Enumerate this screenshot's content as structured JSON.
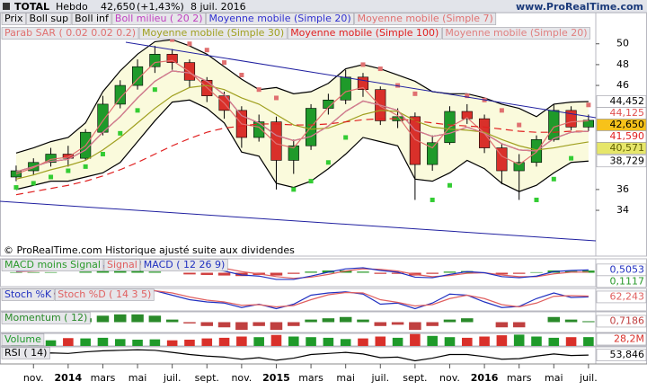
{
  "header": {
    "symbol": "TOTAL",
    "period": "Hebdo",
    "price": "42,650",
    "change": "(+1,43%)",
    "date": "8 juil. 2016",
    "site": "www.ProRealTime.com",
    "note": "© ProRealTime.com Historique ajusté suite aux dividendes"
  },
  "chart_data": [
    {
      "type": "candlestick",
      "xlim": [
        -0.93,
        33.42
      ],
      "ylim": [
        29.6,
        53
      ],
      "yticks": [
        34,
        36,
        46,
        48,
        50
      ],
      "xticks": [
        {
          "value": 1,
          "label": "nov."
        },
        {
          "value": 3,
          "label": "2014"
        },
        {
          "value": 5,
          "label": "mars"
        },
        {
          "value": 7,
          "label": "mai"
        },
        {
          "value": 9,
          "label": "juil."
        },
        {
          "value": 11,
          "label": "sept."
        },
        {
          "value": 13,
          "label": "nov."
        },
        {
          "value": 15,
          "label": "2015"
        },
        {
          "value": 17,
          "label": "mars"
        },
        {
          "value": 19,
          "label": "mai"
        },
        {
          "value": 21,
          "label": "juil."
        },
        {
          "value": 23,
          "label": "sept."
        },
        {
          "value": 25,
          "label": "nov."
        },
        {
          "value": 27,
          "label": "2016"
        },
        {
          "value": 29,
          "label": "mars"
        },
        {
          "value": 31,
          "label": "mai"
        },
        {
          "value": 33,
          "label": "juil."
        }
      ],
      "up_color": "#1f9a2a",
      "down_color": "#d9302a",
      "band_fill": "#fafadc",
      "series": [
        {
          "name": "Prix",
          "color": "#000000",
          "open": [
            37.2,
            37.8,
            38.6,
            39.4,
            39.0,
            41.5,
            44.2,
            46.0,
            47.8,
            49.0,
            48.2,
            46.5,
            45.0,
            43.6,
            41.0,
            42.5,
            38.8,
            40.2,
            43.8,
            44.6,
            46.8,
            45.6,
            42.6,
            43.0,
            38.4,
            40.5,
            43.5,
            42.8,
            40.0,
            37.8,
            38.6,
            40.8,
            43.6,
            42.0
          ],
          "high": [
            38.3,
            39.0,
            40.0,
            40.2,
            41.8,
            45.0,
            46.5,
            48.5,
            49.8,
            49.5,
            48.5,
            46.8,
            45.4,
            44.0,
            43.2,
            43.0,
            40.8,
            44.2,
            45.2,
            47.5,
            47.2,
            45.9,
            43.8,
            43.4,
            41.2,
            44.0,
            44.2,
            43.2,
            40.4,
            39.4,
            41.2,
            44.2,
            44.0,
            43.2
          ],
          "low": [
            36.8,
            37.4,
            38.2,
            38.2,
            38.8,
            41.2,
            43.8,
            45.6,
            47.2,
            47.5,
            45.8,
            44.4,
            42.8,
            40.0,
            40.6,
            36.0,
            37.5,
            39.8,
            43.2,
            44.2,
            44.9,
            42.2,
            41.9,
            35.0,
            37.8,
            40.3,
            42.3,
            39.5,
            36.5,
            35.0,
            38.2,
            40.6,
            41.7,
            41.6
          ],
          "close": [
            37.8,
            38.6,
            39.4,
            39.0,
            41.5,
            44.2,
            46.0,
            47.8,
            49.0,
            48.2,
            46.5,
            45.0,
            43.6,
            41.0,
            42.5,
            38.8,
            40.2,
            43.8,
            44.6,
            46.8,
            45.6,
            42.6,
            43.0,
            38.4,
            40.5,
            43.5,
            42.8,
            40.0,
            37.8,
            38.6,
            40.8,
            43.6,
            42.0,
            42.65
          ]
        },
        {
          "name": "Boll sup",
          "color": "#000000",
          "values": [
            39.5,
            40.0,
            40.6,
            41.0,
            42.4,
            45.4,
            47.4,
            49.0,
            50.2,
            50.4,
            49.8,
            49.0,
            47.8,
            46.6,
            45.6,
            45.8,
            45.2,
            45.4,
            46.2,
            47.6,
            48.0,
            47.6,
            47.0,
            46.4,
            45.4,
            45.2,
            45.2,
            44.8,
            44.2,
            43.8,
            43.0,
            44.2,
            44.4,
            44.452
          ]
        },
        {
          "name": "Boll inf",
          "color": "#000000",
          "values": [
            36.0,
            36.4,
            36.8,
            36.8,
            37.2,
            37.6,
            38.6,
            40.6,
            42.6,
            44.4,
            44.6,
            43.8,
            42.4,
            39.6,
            39.2,
            36.6,
            36.2,
            36.8,
            38.0,
            39.4,
            41.0,
            40.6,
            40.2,
            37.0,
            36.8,
            37.6,
            38.8,
            38.0,
            36.6,
            35.8,
            36.4,
            37.6,
            38.6,
            38.729
          ]
        },
        {
          "name": "Boll milieu ( 20 2)",
          "color": "#c040c0",
          "dash": "4 3",
          "values": [
            37.7,
            38.2,
            38.7,
            38.9,
            39.8,
            41.5,
            43.0,
            44.8,
            46.4,
            47.4,
            47.2,
            46.4,
            45.1,
            43.1,
            42.4,
            41.2,
            40.7,
            41.1,
            42.1,
            43.5,
            44.5,
            44.1,
            43.6,
            41.7,
            41.1,
            41.4,
            42.0,
            41.4,
            40.4,
            39.8,
            39.7,
            40.9,
            41.5,
            41.6
          ]
        },
        {
          "name": "Moyenne mobile (Simple 20)",
          "color": "#3030d0",
          "values": [
            37.7,
            38.2,
            38.7,
            38.9,
            39.8,
            41.5,
            43.0,
            44.8,
            46.4,
            47.4,
            47.2,
            46.4,
            45.1,
            43.1,
            42.4,
            41.2,
            40.7,
            41.1,
            42.1,
            43.5,
            44.5,
            44.1,
            43.6,
            41.7,
            41.1,
            41.4,
            42.0,
            41.4,
            40.4,
            39.8,
            39.7,
            40.9,
            41.5,
            41.6
          ]
        },
        {
          "name": "Moyenne mobile (Simple 7)",
          "color": "#e07070",
          "values": [
            37.5,
            38.1,
            38.9,
            39.1,
            40.2,
            42.6,
            44.8,
            46.6,
            48.2,
            48.4,
            47.3,
            45.8,
            44.3,
            42.3,
            42.0,
            40.4,
            40.0,
            42.0,
            43.9,
            45.4,
            45.8,
            44.0,
            43.1,
            40.8,
            40.0,
            42.0,
            42.9,
            41.4,
            39.2,
            38.4,
            39.6,
            42.0,
            42.5,
            42.6
          ]
        },
        {
          "name": "Parab SAR ( 0.02 0.02 0.2)",
          "color": "#e07070",
          "alt_color": "#33cc33",
          "style": "dots",
          "values": [
            36.2,
            36.6,
            37.2,
            37.8,
            38.2,
            39.4,
            41.4,
            43.6,
            45.6,
            50.4,
            50.0,
            49.4,
            48.2,
            47.0,
            45.6,
            44.8,
            36.0,
            36.8,
            38.6,
            41.0,
            48.0,
            47.6,
            46.0,
            45.2,
            35.0,
            36.4,
            45.0,
            44.6,
            43.6,
            42.2,
            35.0,
            37.0,
            39.0,
            44.125
          ]
        },
        {
          "name": "Moyenne mobile (Simple 30)",
          "color": "#a0a020",
          "values": [
            37.0,
            37.4,
            37.9,
            38.3,
            38.8,
            39.8,
            41.0,
            42.4,
            43.8,
            45.0,
            45.8,
            46.0,
            45.6,
            44.8,
            44.2,
            43.2,
            42.2,
            41.8,
            41.9,
            42.5,
            43.2,
            43.6,
            43.5,
            42.6,
            42.0,
            41.8,
            41.7,
            41.5,
            40.8,
            40.2,
            39.8,
            40.0,
            40.3,
            40.571
          ]
        },
        {
          "name": "Moyenne mobile (Simple 100)",
          "color": "#e02020",
          "dash": "8 5",
          "values": [
            35.5,
            35.8,
            36.1,
            36.4,
            36.8,
            37.3,
            37.9,
            38.6,
            39.4,
            40.2,
            40.9,
            41.5,
            41.9,
            42.1,
            42.3,
            42.3,
            42.2,
            42.2,
            42.3,
            42.5,
            42.7,
            42.8,
            42.8,
            42.6,
            42.4,
            42.2,
            42.1,
            42.0,
            41.8,
            41.6,
            41.5,
            41.5,
            41.6,
            41.59
          ]
        },
        {
          "name": "Moyenne mobile (Simple 20)",
          "color": "#e08080",
          "values": [
            37.7,
            38.2,
            38.7,
            38.9,
            39.8,
            41.5,
            43.0,
            44.8,
            46.4,
            47.4,
            47.2,
            46.4,
            45.1,
            43.1,
            42.4,
            41.2,
            40.7,
            41.1,
            42.1,
            43.5,
            44.5,
            44.1,
            43.6,
            41.7,
            41.1,
            41.4,
            42.0,
            41.4,
            40.4,
            39.8,
            39.7,
            40.9,
            41.5,
            41.6
          ]
        }
      ],
      "flags": [
        {
          "value": 44.452,
          "label": "44,452",
          "color": "#000000",
          "fill": "#ffffff"
        },
        {
          "value": 44.125,
          "label": "44,125",
          "color": "#e05050",
          "fill": "#ffffff"
        },
        {
          "value": 42.65,
          "label": "42,650",
          "color": "#000000",
          "fill": "#f7c21a"
        },
        {
          "value": 41.59,
          "label": "41,590",
          "color": "#e02020",
          "fill": "#ffffff"
        },
        {
          "value": 40.571,
          "label": "40,571",
          "color": "#606000",
          "fill": "#e6e66a"
        },
        {
          "value": 38.729,
          "label": "38,729",
          "color": "#000000",
          "fill": "#ffffff"
        }
      ]
    },
    {
      "type": "indicator",
      "ylim": [
        -2.5,
        2.5
      ],
      "series": [
        {
          "name": "MACD moins Signal",
          "color": "#2a9a2a",
          "alt_color": "#d04040",
          "style": "histogram",
          "values": [
            0.1,
            0.1,
            0.1,
            0,
            0.2,
            0.3,
            0.4,
            0.4,
            0.2,
            0,
            -0.3,
            -0.4,
            -0.5,
            -0.6,
            -0.4,
            -0.5,
            -0.2,
            0.2,
            0.4,
            0.4,
            0.2,
            -0.2,
            -0.2,
            -0.5,
            -0.2,
            0.2,
            0.3,
            0,
            -0.3,
            -0.2,
            0.1,
            0.4,
            0.3,
            0.39
          ]
        },
        {
          "name": "Signal",
          "color": "#e06060",
          "values": [
            0.2,
            0.3,
            0.4,
            0.5,
            0.6,
            0.9,
            1.2,
            1.5,
            1.8,
            1.8,
            1.6,
            1.2,
            0.8,
            0.2,
            -0.2,
            -0.7,
            -1.0,
            -0.8,
            -0.3,
            0.3,
            0.7,
            0.6,
            0.3,
            -0.3,
            -0.7,
            -0.5,
            -0.1,
            0.0,
            -0.4,
            -0.7,
            -0.7,
            -0.2,
            0.1,
            0.1117
          ]
        },
        {
          "name": "MACD ( 12 26 9)",
          "color": "#2030c0",
          "values": [
            0.3,
            0.4,
            0.5,
            0.5,
            0.8,
            1.2,
            1.6,
            1.9,
            2.0,
            1.8,
            1.3,
            0.8,
            0.3,
            -0.4,
            -0.6,
            -1.2,
            -1.2,
            -0.6,
            0.1,
            0.7,
            0.9,
            0.4,
            0.1,
            -0.8,
            -0.9,
            -0.3,
            0.2,
            0.0,
            -0.7,
            -0.9,
            -0.6,
            0.2,
            0.4,
            0.5053
          ]
        }
      ],
      "flags": [
        {
          "value": 0.5053,
          "label": "0,5053",
          "color": "#2030c0",
          "fill": "#ffffff"
        },
        {
          "value": 0.1117,
          "label": "0,1117",
          "color": "#2a9a2a",
          "fill": "#ffffff"
        }
      ]
    },
    {
      "type": "indicator",
      "ylim": [
        0,
        100
      ],
      "series": [
        {
          "name": "Stoch %K",
          "color": "#2030c0",
          "values": [
            70,
            75,
            80,
            72,
            85,
            90,
            88,
            92,
            90,
            70,
            50,
            40,
            35,
            15,
            30,
            10,
            30,
            70,
            80,
            85,
            75,
            30,
            35,
            10,
            35,
            75,
            70,
            40,
            15,
            20,
            55,
            80,
            60,
            62.243
          ]
        },
        {
          "name": "Stoch %D ( 14 3 5)",
          "color": "#e06060",
          "values": [
            65,
            70,
            76,
            75,
            79,
            86,
            88,
            90,
            90,
            80,
            62,
            48,
            40,
            25,
            28,
            18,
            24,
            50,
            72,
            82,
            80,
            50,
            38,
            22,
            28,
            55,
            70,
            55,
            28,
            18,
            35,
            65,
            68,
            66
          ]
        }
      ],
      "flags": [
        {
          "value": 62.243,
          "label": "62,243",
          "color": "#e06060",
          "fill": "#ffffff"
        }
      ]
    },
    {
      "type": "indicator",
      "ylim": [
        -8,
        8
      ],
      "series": [
        {
          "name": "Momentum ( 12)",
          "color": "#2a8a2a",
          "alt_color": "#c04040",
          "style": "histogram",
          "values": [
            1,
            1.5,
            2,
            1,
            3,
            5,
            6,
            6,
            5,
            2,
            -1,
            -3,
            -4,
            -6,
            -3,
            -6,
            -3,
            2,
            3,
            4,
            2,
            -3,
            -2,
            -6,
            -3,
            2,
            3,
            0,
            -4,
            -4,
            0,
            4,
            2,
            0.7186
          ]
        }
      ],
      "flags": [
        {
          "value": 0.7186,
          "label": "0,7186",
          "color": "#c04040",
          "fill": "#ffffff"
        }
      ]
    },
    {
      "type": "indicator",
      "ylim": [
        0,
        40
      ],
      "series": [
        {
          "name": "Volume",
          "color": "#1f9a2a",
          "alt_color": "#d9302a",
          "style": "bars",
          "values": [
            20,
            22,
            18,
            25,
            24,
            26,
            22,
            20,
            21,
            18,
            20,
            24,
            26,
            30,
            28,
            35,
            30,
            28,
            26,
            22,
            24,
            30,
            26,
            38,
            32,
            28,
            26,
            30,
            34,
            36,
            30,
            26,
            28,
            28.2
          ]
        }
      ],
      "flags": [
        {
          "value": 28.2,
          "label": "28,2M",
          "color": "#d9302a",
          "fill": "#ffffff"
        }
      ]
    },
    {
      "type": "indicator",
      "ylim": [
        20,
        85
      ],
      "series": [
        {
          "name": "RSI ( 14)",
          "color": "#000000",
          "values": [
            58,
            60,
            62,
            60,
            66,
            70,
            72,
            74,
            72,
            64,
            56,
            50,
            46,
            38,
            44,
            34,
            42,
            56,
            60,
            64,
            58,
            44,
            46,
            32,
            42,
            56,
            56,
            48,
            38,
            40,
            50,
            58,
            52,
            53.846
          ]
        }
      ],
      "flags": [
        {
          "value": 53.846,
          "label": "53,846",
          "color": "#000000",
          "fill": "#ffffff"
        }
      ]
    }
  ]
}
